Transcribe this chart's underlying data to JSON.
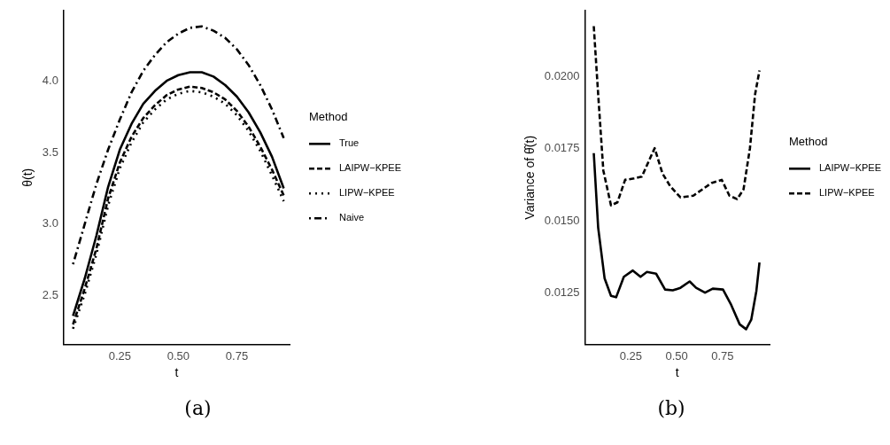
{
  "chart_data": [
    {
      "type": "line",
      "xlabel": "t",
      "ylabel": "θ(t)",
      "legend_title": "Method",
      "legend": "right",
      "grid": false,
      "marker": "none",
      "annotations": [
        "(a)"
      ],
      "x": [
        0.05,
        0.1,
        0.15,
        0.2,
        0.25,
        0.3,
        0.35,
        0.4,
        0.45,
        0.5,
        0.55,
        0.6,
        0.65,
        0.7,
        0.75,
        0.8,
        0.85,
        0.9,
        0.95
      ],
      "xlim": [
        0.01,
        0.975
      ],
      "xticks": [
        {
          "value": 0.25,
          "label": "0.25"
        },
        {
          "value": 0.5,
          "label": "0.50"
        },
        {
          "value": 0.75,
          "label": "0.75"
        }
      ],
      "ylim": [
        2.16,
        4.49
      ],
      "yticks": [
        2.5,
        {
          "value": 3,
          "label": "3.0"
        },
        3.5,
        {
          "value": 4,
          "label": "4.0"
        }
      ],
      "series": [
        {
          "name": "True",
          "color": "#000000",
          "line_style": "solid",
          "values": [
            2.36,
            2.62,
            2.92,
            3.26,
            3.52,
            3.7,
            3.84,
            3.93,
            4.0,
            4.04,
            4.06,
            4.06,
            4.03,
            3.97,
            3.89,
            3.78,
            3.64,
            3.47,
            3.25
          ]
        },
        {
          "name": "LAIPW−KPEE",
          "color": "#000000",
          "line_style": "dashed",
          "values": [
            2.3,
            2.55,
            2.83,
            3.18,
            3.43,
            3.61,
            3.74,
            3.83,
            3.9,
            3.94,
            3.96,
            3.95,
            3.92,
            3.87,
            3.79,
            3.68,
            3.54,
            3.38,
            3.2
          ]
        },
        {
          "name": "LIPW−KPEE",
          "color": "#000000",
          "line_style": "dotted",
          "values": [
            2.27,
            2.51,
            2.79,
            3.13,
            3.39,
            3.57,
            3.71,
            3.8,
            3.87,
            3.91,
            3.93,
            3.92,
            3.89,
            3.84,
            3.76,
            3.65,
            3.51,
            3.34,
            3.16
          ]
        },
        {
          "name": "Naive",
          "color": "#000000",
          "line_style": "dashdot",
          "values": [
            2.72,
            3.0,
            3.28,
            3.52,
            3.73,
            3.92,
            4.07,
            4.18,
            4.27,
            4.33,
            4.37,
            4.38,
            4.35,
            4.3,
            4.22,
            4.11,
            3.97,
            3.8,
            3.6
          ]
        }
      ]
    },
    {
      "type": "line",
      "xlabel": "t",
      "ylabel": "Variance of θ̂(t)",
      "legend_title": "Method",
      "legend": "right",
      "grid": false,
      "marker": "none",
      "annotations": [
        "(b)"
      ],
      "xlim": [
        0,
        1.007
      ],
      "xticks": [
        {
          "value": 0.25,
          "label": "0.25"
        },
        {
          "value": 0.5,
          "label": "0.50"
        },
        {
          "value": 0.75,
          "label": "0.75"
        }
      ],
      "ylim": [
        0.0107,
        0.0223
      ],
      "yticks": [
        0.0125,
        {
          "value": 0.015,
          "label": "0.0150"
        },
        0.0175,
        {
          "value": 0.02,
          "label": "0.0200"
        }
      ],
      "series": [
        {
          "name": "LAIPW−KPEE",
          "color": "#000000",
          "line_style": "solid",
          "x": [
            0.048,
            0.072,
            0.107,
            0.142,
            0.17,
            0.212,
            0.261,
            0.303,
            0.338,
            0.388,
            0.437,
            0.479,
            0.521,
            0.571,
            0.606,
            0.655,
            0.697,
            0.753,
            0.795,
            0.844,
            0.879,
            0.907,
            0.935,
            0.952
          ],
          "values": [
            0.01735,
            0.01476,
            0.013,
            0.01239,
            0.01234,
            0.01305,
            0.01327,
            0.01305,
            0.01322,
            0.01316,
            0.01261,
            0.01258,
            0.01267,
            0.01289,
            0.01267,
            0.0125,
            0.01264,
            0.01261,
            0.01211,
            0.0114,
            0.01123,
            0.01156,
            0.01256,
            0.01355
          ]
        },
        {
          "name": "LIPW−KPEE",
          "color": "#000000",
          "line_style": "dashed",
          "x": [
            0.048,
            0.072,
            0.1,
            0.142,
            0.177,
            0.219,
            0.268,
            0.31,
            0.38,
            0.423,
            0.465,
            0.521,
            0.591,
            0.69,
            0.746,
            0.788,
            0.83,
            0.865,
            0.9,
            0.928,
            0.952
          ],
          "values": [
            0.02176,
            0.01939,
            0.01675,
            0.01553,
            0.01564,
            0.01642,
            0.01647,
            0.01653,
            0.01752,
            0.01664,
            0.0162,
            0.01581,
            0.01587,
            0.01631,
            0.01642,
            0.01587,
            0.01575,
            0.01609,
            0.01752,
            0.01939,
            0.02022
          ]
        }
      ]
    }
  ]
}
